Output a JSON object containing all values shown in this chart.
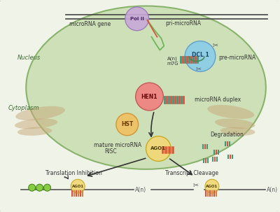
{
  "bg_color": "#f0f4e8",
  "border_color": "#4a8a3a",
  "nucleus_color": "#c8ddb0",
  "nucleus_border": "#7aaa5a",
  "cytoplasm_text": "Cytoplasm",
  "nucleus_text": "Nucleus",
  "pol2_color": "#c8a8d8",
  "dcl1_color": "#88cce8",
  "hen1_color": "#f08080",
  "hst_color": "#f0c060",
  "ago1_color": "#f0d878",
  "labels": {
    "mirna_gene": "microRNA gene",
    "pol2": "Pol II",
    "pri_mirna": "pri-microRNA",
    "dcl1": "DCL 1",
    "pre_mirna": "pre-microRNA",
    "a_n": "A(n)",
    "m7g": "m7G",
    "hen1": "HEN1",
    "mirna_duplex": "microRNA duplex",
    "hst": "HST",
    "ago1": "AGO1",
    "mature_mirna": "mature microRNA",
    "risc": "RISC",
    "degradation": "Degradation",
    "translation_inhibition": "Translation Inhibition",
    "transcript_cleavage": "Transcript Cleavage"
  },
  "stripe_color": "#c8a878",
  "green_dark": "#5a9a3a",
  "red_stripe": "#e05040",
  "teal_stripe": "#409878"
}
